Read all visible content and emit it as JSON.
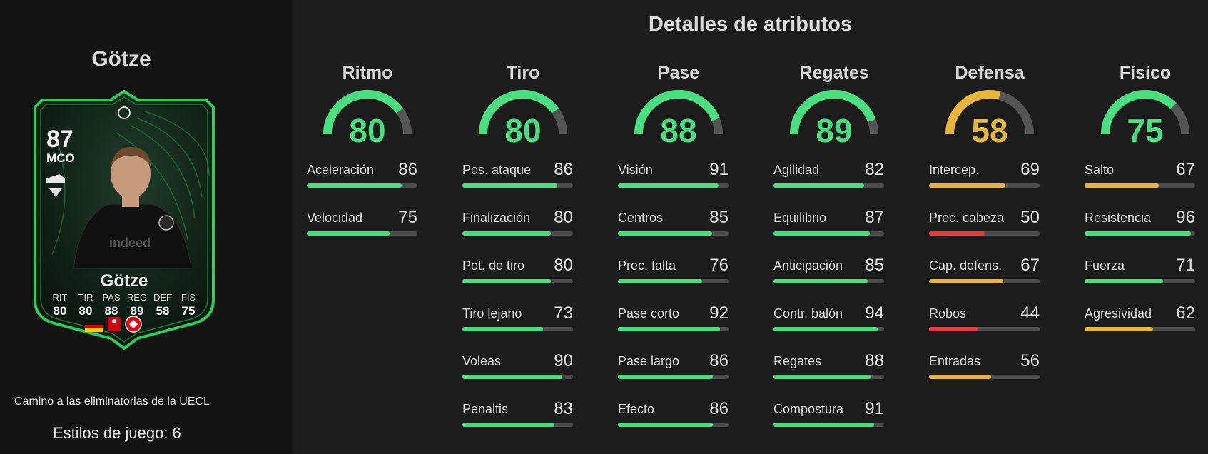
{
  "colors": {
    "high": "#4ade80",
    "mid": "#e6b53a",
    "low": "#e03c3c",
    "gauge_track": "#555555",
    "card_border": "#2ecc5a"
  },
  "player": {
    "title": "Götze",
    "promo": "Camino a las eliminatorias de la UECL",
    "playstyles": "Estilos de juego: 6"
  },
  "card": {
    "rating": "87",
    "position": "MCO",
    "weak_foot": "1",
    "name": "Götze",
    "stat_labels": [
      "RIT",
      "TIR",
      "PAS",
      "REG",
      "DEF",
      "FÍS"
    ],
    "stat_values": [
      "80",
      "80",
      "88",
      "89",
      "58",
      "75"
    ],
    "icons": [
      "boot-icon",
      "germany-flag-icon",
      "bundesliga-logo-icon",
      "eintracht-frankfurt-badge-icon",
      "uecl-logo-icon"
    ]
  },
  "details_title": "Detalles de atributos",
  "categories": [
    {
      "name": "Ritmo",
      "value": 80,
      "color": "#4ade80",
      "stats": [
        {
          "label": "Aceleración",
          "value": 86,
          "color": "#4ade80"
        },
        {
          "label": "Velocidad",
          "value": 75,
          "color": "#4ade80"
        }
      ]
    },
    {
      "name": "Tiro",
      "value": 80,
      "color": "#4ade80",
      "stats": [
        {
          "label": "Pos. ataque",
          "value": 86,
          "color": "#4ade80"
        },
        {
          "label": "Finalización",
          "value": 80,
          "color": "#4ade80"
        },
        {
          "label": "Pot. de tiro",
          "value": 80,
          "color": "#4ade80"
        },
        {
          "label": "Tiro lejano",
          "value": 73,
          "color": "#4ade80"
        },
        {
          "label": "Voleas",
          "value": 90,
          "color": "#4ade80"
        },
        {
          "label": "Penaltis",
          "value": 83,
          "color": "#4ade80"
        }
      ]
    },
    {
      "name": "Pase",
      "value": 88,
      "color": "#4ade80",
      "stats": [
        {
          "label": "Visión",
          "value": 91,
          "color": "#4ade80"
        },
        {
          "label": "Centros",
          "value": 85,
          "color": "#4ade80"
        },
        {
          "label": "Prec. falta",
          "value": 76,
          "color": "#4ade80"
        },
        {
          "label": "Pase corto",
          "value": 92,
          "color": "#4ade80"
        },
        {
          "label": "Pase largo",
          "value": 86,
          "color": "#4ade80"
        },
        {
          "label": "Efecto",
          "value": 86,
          "color": "#4ade80"
        }
      ]
    },
    {
      "name": "Regates",
      "value": 89,
      "color": "#4ade80",
      "stats": [
        {
          "label": "Agilidad",
          "value": 82,
          "color": "#4ade80"
        },
        {
          "label": "Equilibrio",
          "value": 87,
          "color": "#4ade80"
        },
        {
          "label": "Anticipación",
          "value": 85,
          "color": "#4ade80"
        },
        {
          "label": "Contr. balón",
          "value": 94,
          "color": "#4ade80"
        },
        {
          "label": "Regates",
          "value": 88,
          "color": "#4ade80"
        },
        {
          "label": "Compostura",
          "value": 91,
          "color": "#4ade80"
        }
      ]
    },
    {
      "name": "Defensa",
      "value": 58,
      "color": "#e6b53a",
      "stats": [
        {
          "label": "Intercep.",
          "value": 69,
          "color": "#e6b53a"
        },
        {
          "label": "Prec. cabeza",
          "value": 50,
          "color": "#e03c3c"
        },
        {
          "label": "Cap. defens.",
          "value": 67,
          "color": "#e6b53a"
        },
        {
          "label": "Robos",
          "value": 44,
          "color": "#e03c3c"
        },
        {
          "label": "Entradas",
          "value": 56,
          "color": "#e6b53a"
        }
      ]
    },
    {
      "name": "Físico",
      "value": 75,
      "color": "#4ade80",
      "stats": [
        {
          "label": "Salto",
          "value": 67,
          "color": "#e6b53a"
        },
        {
          "label": "Resistencia",
          "value": 96,
          "color": "#4ade80"
        },
        {
          "label": "Fuerza",
          "value": 71,
          "color": "#4ade80"
        },
        {
          "label": "Agresividad",
          "value": 62,
          "color": "#e6b53a"
        }
      ]
    }
  ]
}
